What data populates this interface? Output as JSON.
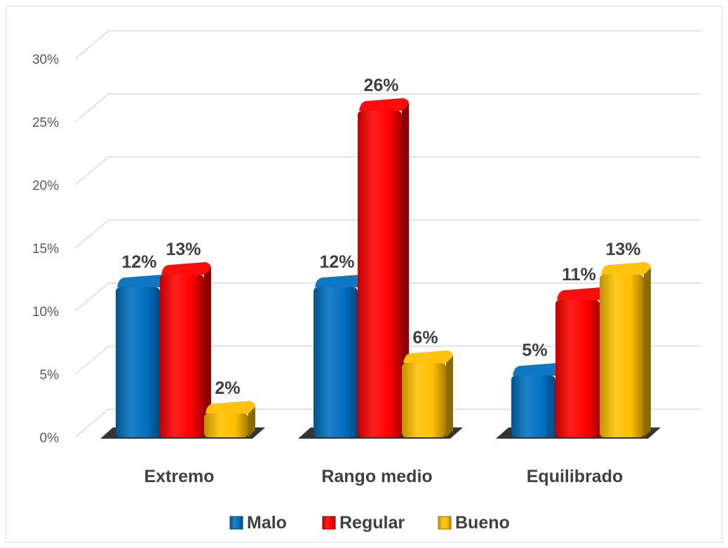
{
  "chart_data": {
    "type": "bar",
    "categories": [
      "Extremo",
      "Rango medio",
      "Equilibrado"
    ],
    "series": [
      {
        "name": "Malo",
        "values": [
          12,
          12,
          5
        ],
        "labels": [
          "12%",
          "12%",
          "5%"
        ],
        "color": "#0070C0"
      },
      {
        "name": "Regular",
        "values": [
          13,
          26,
          11
        ],
        "labels": [
          "13%",
          "26%",
          "11%"
        ],
        "color": "#FF0000"
      },
      {
        "name": "Bueno",
        "values": [
          2,
          6,
          13
        ],
        "labels": [
          "2%",
          "6%",
          "13%"
        ],
        "color": "#FFC000"
      }
    ],
    "ylim": [
      0,
      30
    ],
    "yticks": [
      0,
      5,
      10,
      15,
      20,
      25,
      30
    ],
    "ytick_labels": [
      "0%",
      "5%",
      "10%",
      "15%",
      "20%",
      "25%",
      "30%"
    ],
    "grid": true,
    "legend_position": "bottom",
    "style": "3d-clustered-column"
  }
}
